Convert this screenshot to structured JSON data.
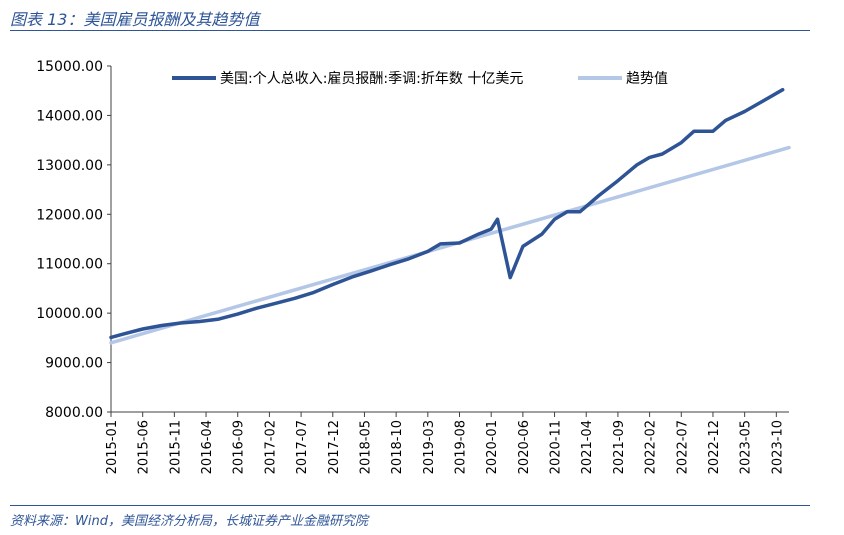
{
  "figure": {
    "title": "图表 13：美国雇员报酬及其趋势值",
    "source": "资料来源：Wind，美国经济分析局，长城证券产业金融研究院"
  },
  "colors": {
    "actual": "#2f5496",
    "trend": "#b4c7e7",
    "axis": "#404040",
    "text": "#000000",
    "accent": "#2e5597"
  },
  "chart_data": {
    "type": "line",
    "ylim": [
      8000,
      15000
    ],
    "yticks": [
      "8000.00",
      "9000.00",
      "10000.00",
      "11000.00",
      "12000.00",
      "13000.00",
      "14000.00",
      "15000.00"
    ],
    "xticks": [
      "2015-01",
      "2015-06",
      "2015-11",
      "2016-04",
      "2016-09",
      "2017-02",
      "2017-07",
      "2017-12",
      "2018-05",
      "2018-10",
      "2019-03",
      "2019-08",
      "2020-01",
      "2020-06",
      "2020-11",
      "2021-04",
      "2021-09",
      "2022-02",
      "2022-07",
      "2022-12",
      "2023-05",
      "2023-10"
    ],
    "legend_position": "top",
    "grid": false,
    "series": [
      {
        "name": "美国:个人总收入:雇员报酬:季调:折年数 十亿美元",
        "style": "solid",
        "points": [
          [
            "2015-01",
            9510
          ],
          [
            "2015-03",
            9580
          ],
          [
            "2015-06",
            9680
          ],
          [
            "2015-09",
            9750
          ],
          [
            "2015-12",
            9800
          ],
          [
            "2016-03",
            9830
          ],
          [
            "2016-06",
            9880
          ],
          [
            "2016-09",
            9980
          ],
          [
            "2016-12",
            10100
          ],
          [
            "2017-03",
            10200
          ],
          [
            "2017-06",
            10300
          ],
          [
            "2017-09",
            10420
          ],
          [
            "2017-12",
            10580
          ],
          [
            "2018-03",
            10730
          ],
          [
            "2018-06",
            10850
          ],
          [
            "2018-09",
            10980
          ],
          [
            "2018-12",
            11100
          ],
          [
            "2019-03",
            11250
          ],
          [
            "2019-05",
            11400
          ],
          [
            "2019-08",
            11420
          ],
          [
            "2019-11",
            11600
          ],
          [
            "2020-01",
            11700
          ],
          [
            "2020-02",
            11900
          ],
          [
            "2020-04",
            10720
          ],
          [
            "2020-06",
            11350
          ],
          [
            "2020-09",
            11600
          ],
          [
            "2020-11",
            11900
          ],
          [
            "2021-01",
            12050
          ],
          [
            "2021-03",
            12050
          ],
          [
            "2021-06",
            12380
          ],
          [
            "2021-09",
            12680
          ],
          [
            "2021-12",
            13000
          ],
          [
            "2022-02",
            13150
          ],
          [
            "2022-04",
            13220
          ],
          [
            "2022-07",
            13450
          ],
          [
            "2022-09",
            13680
          ],
          [
            "2022-11",
            13680
          ],
          [
            "2022-12",
            13680
          ],
          [
            "2023-02",
            13900
          ],
          [
            "2023-05",
            14080
          ],
          [
            "2023-08",
            14300
          ],
          [
            "2023-11",
            14520
          ]
        ]
      },
      {
        "name": "趋势值",
        "style": "solid",
        "points": [
          [
            "2015-01",
            9400
          ],
          [
            "2023-12",
            13350
          ]
        ]
      }
    ]
  }
}
